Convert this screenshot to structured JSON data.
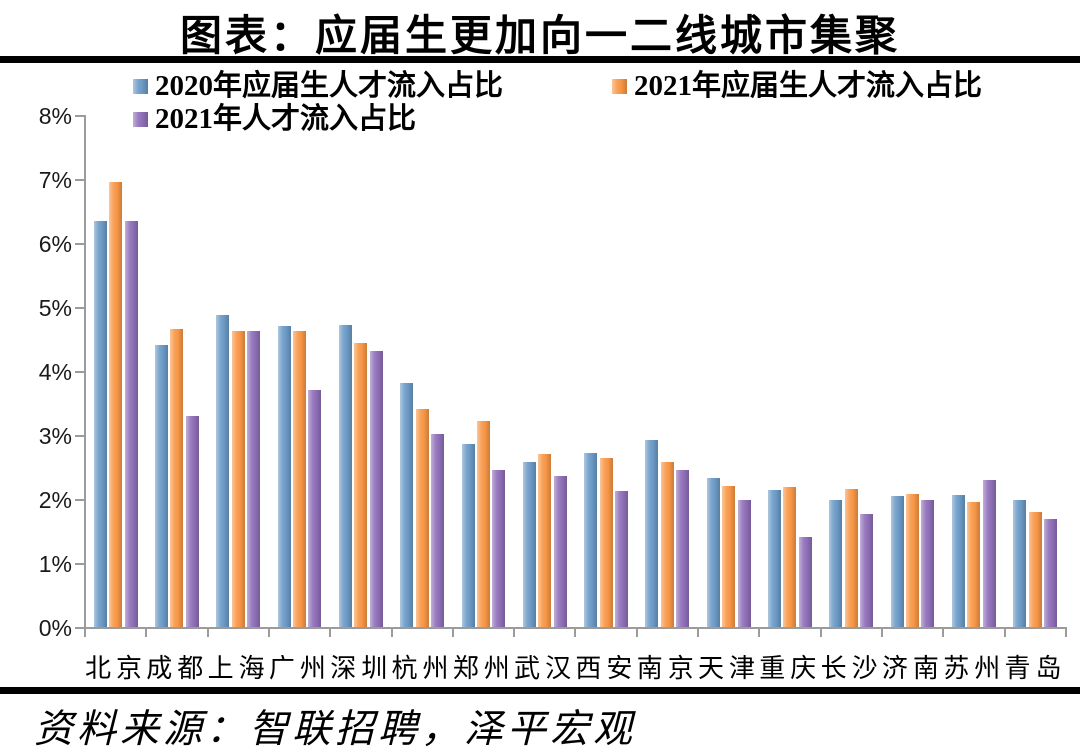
{
  "title": "图表：应届生更加向一二线城市集聚",
  "source_note": "资料来源：智联招聘，泽平宏观",
  "colors": {
    "series_blue": "#6B9AC6",
    "series_orange": "#F79646",
    "series_purple": "#8F6FB8",
    "axis": "#9B9B9B",
    "divider": "#000000"
  },
  "chart_data": {
    "type": "bar",
    "title": "图表：应届生更加向一二线城市集聚",
    "categories": [
      "北京",
      "成都",
      "上海",
      "广州",
      "深圳",
      "杭州",
      "郑州",
      "武汉",
      "西安",
      "南京",
      "天津",
      "重庆",
      "长沙",
      "济南",
      "苏州",
      "青岛"
    ],
    "series": [
      {
        "name": "2020年应届生人才流入占比",
        "color": "#6B9AC6",
        "values": [
          6.35,
          4.4,
          4.87,
          4.71,
          4.72,
          3.81,
          2.86,
          2.58,
          2.72,
          2.92,
          2.33,
          2.14,
          1.98,
          2.04,
          2.07,
          1.99
        ]
      },
      {
        "name": "2021年应届生人才流入占比",
        "color": "#F79646",
        "values": [
          6.96,
          4.65,
          4.63,
          4.62,
          4.43,
          3.41,
          3.22,
          2.7,
          2.64,
          2.58,
          2.21,
          2.19,
          2.16,
          2.08,
          1.95,
          1.8
        ]
      },
      {
        "name": "2021年人才流入占比",
        "color": "#8F6FB8",
        "values": [
          6.34,
          3.29,
          4.63,
          3.71,
          4.31,
          3.02,
          2.46,
          2.36,
          2.13,
          2.45,
          1.99,
          1.41,
          1.77,
          1.99,
          2.29,
          1.69
        ]
      }
    ],
    "xlabel": "",
    "ylabel": "",
    "ylim": [
      0,
      8
    ],
    "ytick_labels": [
      "0%",
      "1%",
      "2%",
      "3%",
      "4%",
      "5%",
      "6%",
      "7%",
      "8%"
    ],
    "grid": false,
    "legend_position": "top-left"
  }
}
